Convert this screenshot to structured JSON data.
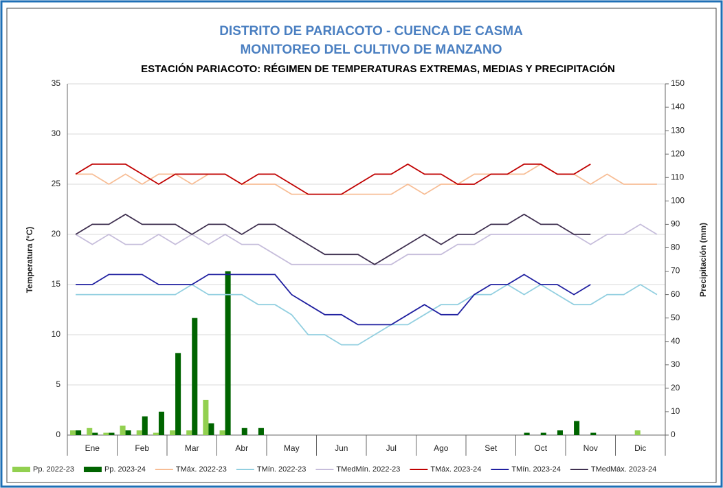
{
  "chart_data": {
    "type": "line",
    "title": "DISTRITO DE PARIACOTO - CUENCA DE CASMA",
    "subtitle": "MONITOREO DEL CULTIVO DE MANZANO",
    "chart_title": "ESTACIÓN PARIACOTO: RÉGIMEN DE TEMPERATURAS EXTREMAS, MEDIAS Y PRECIPITACIÓN",
    "y_label": "Temperatura (°C)",
    "y2_label": "Precipitación (mm)",
    "categories": [
      null,
      "Ene",
      null,
      null,
      "Feb",
      null,
      null,
      "Mar",
      null,
      null,
      "Abr",
      null,
      null,
      "May",
      null,
      null,
      "Jun",
      null,
      null,
      "Jul",
      null,
      null,
      "Ago",
      null,
      null,
      "Set",
      null,
      null,
      "Oct",
      null,
      null,
      "Nov",
      null,
      null,
      "Dic",
      null
    ],
    "ylim": [
      0,
      35
    ],
    "yticks": [
      0,
      5,
      10,
      15,
      20,
      25,
      30,
      35
    ],
    "y2lim": [
      0,
      150
    ],
    "y2ticks": [
      0,
      10,
      20,
      30,
      40,
      50,
      60,
      70,
      80,
      90,
      100,
      110,
      120,
      130,
      140,
      150
    ],
    "grid": true,
    "series": [
      {
        "name": "Pp. 2022-23",
        "type": "bar",
        "axis": "y2",
        "color": "#92d050",
        "values": [
          2,
          3,
          1,
          4,
          2,
          1,
          2,
          2,
          15,
          2,
          0,
          0,
          0,
          0,
          0,
          0,
          0,
          0,
          0,
          0,
          0,
          0,
          0,
          0,
          0,
          0,
          0,
          0,
          0,
          0,
          0,
          0,
          0,
          0,
          2,
          0
        ]
      },
      {
        "name": "Pp. 2023-24",
        "type": "bar",
        "axis": "y2",
        "color": "#006400",
        "values": [
          2,
          1,
          1,
          2,
          8,
          10,
          35,
          50,
          5,
          70,
          3,
          3,
          0,
          0,
          0,
          0,
          0,
          0,
          0,
          0,
          0,
          0,
          0,
          0,
          0,
          0,
          0,
          1,
          1,
          2,
          6,
          1,
          0,
          0,
          0,
          0
        ]
      },
      {
        "name": "TMáx. 2022-23",
        "type": "line",
        "color": "#f7bd95",
        "values": [
          26,
          26,
          25,
          26,
          25,
          26,
          26,
          25,
          26,
          26,
          25,
          25,
          25,
          24,
          24,
          24,
          24,
          24,
          24,
          24,
          25,
          24,
          25,
          25,
          26,
          26,
          26,
          26,
          27,
          26,
          26,
          25,
          26,
          25,
          25,
          25
        ]
      },
      {
        "name": "TMín. 2022-23",
        "type": "line",
        "color": "#92cfe0",
        "values": [
          14,
          14,
          14,
          14,
          14,
          14,
          14,
          15,
          14,
          14,
          14,
          13,
          13,
          12,
          10,
          10,
          9,
          9,
          10,
          11,
          11,
          12,
          13,
          13,
          14,
          14,
          15,
          14,
          15,
          14,
          13,
          13,
          14,
          14,
          15,
          14
        ]
      },
      {
        "name": "TMedMín. 2022-23",
        "type": "line",
        "color": "#c6bddb",
        "values": [
          20,
          19,
          20,
          19,
          19,
          20,
          19,
          20,
          19,
          20,
          19,
          19,
          18,
          17,
          17,
          17,
          17,
          17,
          17,
          17,
          18,
          18,
          18,
          19,
          19,
          20,
          20,
          20,
          20,
          20,
          20,
          19,
          20,
          20,
          21,
          20
        ]
      },
      {
        "name": "TMáx. 2023-24",
        "type": "line",
        "color": "#c00000",
        "values": [
          26,
          27,
          27,
          27,
          26,
          25,
          26,
          26,
          26,
          26,
          25,
          26,
          26,
          25,
          24,
          24,
          24,
          25,
          26,
          26,
          27,
          26,
          26,
          25,
          25,
          26,
          26,
          27,
          27,
          26,
          26,
          27,
          null,
          null,
          null,
          null
        ]
      },
      {
        "name": "TMín. 2023-24",
        "type": "line",
        "color": "#1f1fa0",
        "values": [
          15,
          15,
          16,
          16,
          16,
          15,
          15,
          15,
          16,
          16,
          16,
          16,
          16,
          14,
          13,
          12,
          12,
          11,
          11,
          11,
          12,
          13,
          12,
          12,
          14,
          15,
          15,
          16,
          15,
          15,
          14,
          15,
          null,
          null,
          null,
          null
        ]
      },
      {
        "name": "TMedMáx. 2023-24",
        "type": "line",
        "color": "#3f3050",
        "values": [
          20,
          21,
          21,
          22,
          21,
          21,
          21,
          20,
          21,
          21,
          20,
          21,
          21,
          20,
          19,
          18,
          18,
          18,
          17,
          18,
          19,
          20,
          19,
          20,
          20,
          21,
          21,
          22,
          21,
          21,
          20,
          20,
          null,
          null,
          null,
          null
        ]
      }
    ]
  }
}
